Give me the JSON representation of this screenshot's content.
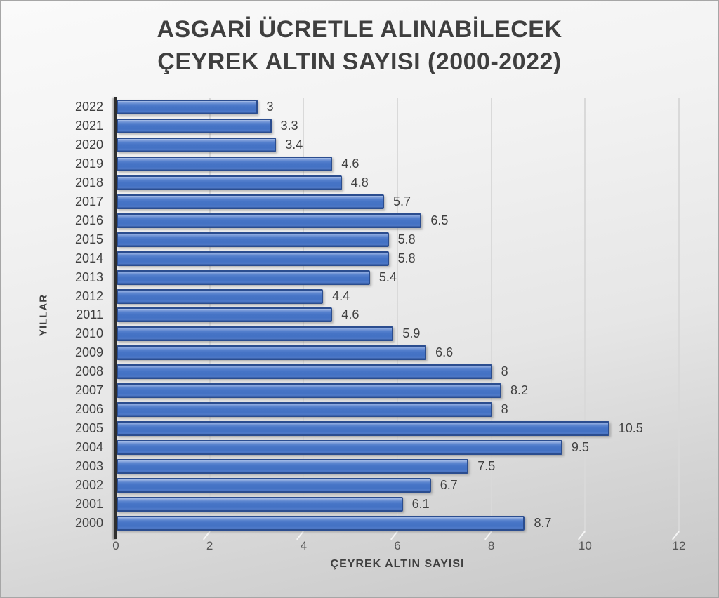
{
  "header": {
    "title_lines": [
      "ASGARİ ÜCRETLE ALINABİLECEK",
      "ÇEYREK ALTIN SAYISI (2000-2022)"
    ]
  },
  "chart_data": {
    "type": "bar",
    "orientation": "horizontal",
    "title": "ASGARİ ÜCRETLE ALINABİLECEK ÇEYREK ALTIN SAYISI (2000-2022)",
    "xlabel": "ÇEYREK ALTIN SAYISI",
    "ylabel": "YILLAR",
    "categories_top_to_bottom": [
      "2022",
      "2021",
      "2020",
      "2019",
      "2018",
      "2017",
      "2016",
      "2015",
      "2014",
      "2013",
      "2012",
      "2011",
      "2010",
      "2009",
      "2008",
      "2007",
      "2006",
      "2005",
      "2004",
      "2003",
      "2002",
      "2001",
      "2000"
    ],
    "values": [
      3,
      3.3,
      3.4,
      4.6,
      4.8,
      5.7,
      6.5,
      5.8,
      5.8,
      5.4,
      4.4,
      4.6,
      5.9,
      6.6,
      8,
      8.2,
      8,
      10.5,
      9.5,
      7.5,
      6.7,
      6.1,
      8.7
    ],
    "xlim": [
      0,
      12
    ],
    "x_ticks": [
      0,
      2,
      4,
      6,
      8,
      10,
      12
    ],
    "grid": "vertical-gridlines",
    "legend": "none",
    "data_labels": "outside-end",
    "colors": {
      "bar_fill": "#4472C4",
      "bar_border": "#2B4D8F",
      "axis_line": "#2F2F2F",
      "label_text": "#404040",
      "tick_text": "#565656",
      "gridline": "#D9D9D9",
      "title_text": "#3F3F3F"
    }
  }
}
